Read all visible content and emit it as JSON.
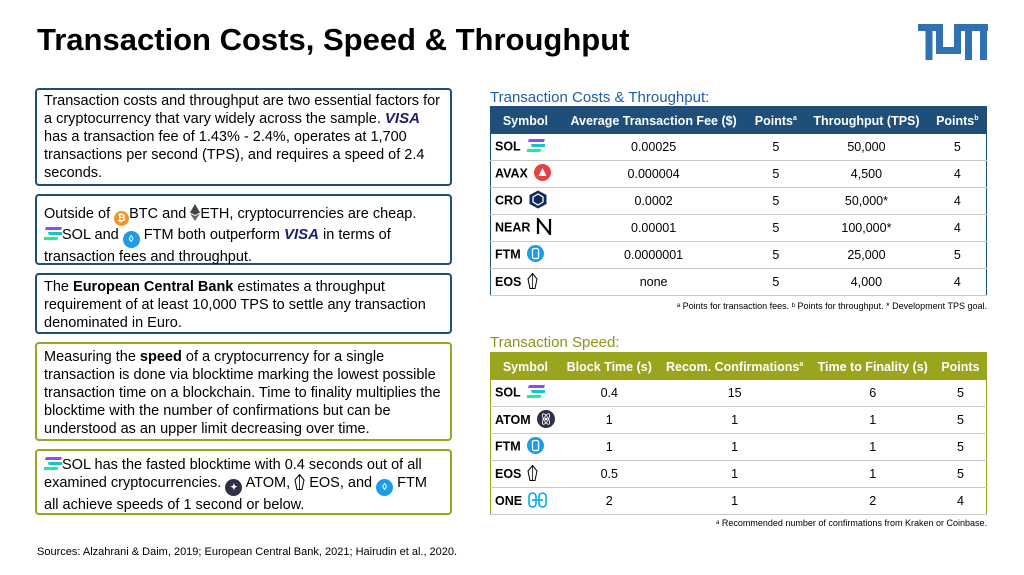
{
  "title": "Transaction Costs, Speed & Throughput",
  "colors": {
    "blue": "#1f4e79",
    "olive": "#9aa51e",
    "caption_blue": "#1f5ea8"
  },
  "boxes": {
    "intro": {
      "p1": "Transaction costs and throughput are two essential factors for a cryptocurrency that vary widely across the sample.",
      "visa": "VISA",
      "p2": "has a transaction fee of 1.43% - 2.4%, operates at 1,700 transactions per second (TPS), and requires a speed of 2.4 seconds."
    },
    "cheap": {
      "a": "Outside of",
      "btc": "BTC and",
      "eth": "ETH, cryptocurrencies are cheap.",
      "sol": "SOL and",
      "ftm": "FTM both outperform",
      "visa": "VISA",
      "end": "in terms of transaction fees and throughput."
    },
    "ecb": {
      "a": "The",
      "bold": "European Central Bank",
      "b": "estimates a throughput requirement of at least 10,000 TPS to settle any transaction denominated in Euro."
    },
    "speed": {
      "a": "Measuring the",
      "bold": "speed",
      "b": "of a cryptocurrency for a single transaction is done via blocktime marking the lowest possible transaction time on a blockchain. Time to finality multiplies the blocktime with the number of confirmations but can be understood as an upper limit decreasing over time."
    },
    "sol": {
      "a": "SOL has the fasted blocktime with 0.4 seconds out of all examined cryptocurrencies.",
      "atom": "ATOM,",
      "eos": "EOS, and",
      "ftm": "FTM",
      "b": "all achieve speeds of 1 second or below."
    }
  },
  "table1": {
    "caption": "Transaction Costs & Throughput:",
    "headers": [
      "Symbol",
      "Average Transaction Fee ($)",
      "Points",
      "Throughput (TPS)",
      "Points"
    ],
    "sup": "a",
    "sup2": "b",
    "rows": [
      {
        "symbol": "SOL",
        "icon": "solana-icon",
        "fee": "0.00025",
        "p1": "5",
        "tps": "50,000",
        "p2": "5"
      },
      {
        "symbol": "AVAX",
        "icon": "avalanche-icon",
        "fee": "0.000004",
        "p1": "5",
        "tps": "4,500",
        "p2": "4"
      },
      {
        "symbol": "CRO",
        "icon": "cronos-icon",
        "fee": "0.0002",
        "p1": "5",
        "tps": "50,000*",
        "p2": "4"
      },
      {
        "symbol": "NEAR",
        "icon": "near-icon",
        "fee": "0.00001",
        "p1": "5",
        "tps": "100,000*",
        "p2": "4"
      },
      {
        "symbol": "FTM",
        "icon": "fantom-icon",
        "fee": "0.0000001",
        "p1": "5",
        "tps": "25,000",
        "p2": "5"
      },
      {
        "symbol": "EOS",
        "icon": "eos-icon",
        "fee": "none",
        "p1": "5",
        "tps": "4,000",
        "p2": "4"
      }
    ],
    "note": "ᵃ Points for transaction fees. ᵇ Points for throughput. * Development TPS goal."
  },
  "table2": {
    "caption": "Transaction Speed:",
    "headers": [
      "Symbol",
      "Block Time (s)",
      "Recom. Confirmations",
      "Time to Finality (s)",
      "Points"
    ],
    "sup": "a",
    "rows": [
      {
        "symbol": "SOL",
        "icon": "solana-icon",
        "block": "0.4",
        "conf": "15",
        "fin": "6",
        "pts": "5"
      },
      {
        "symbol": "ATOM",
        "icon": "cosmos-icon",
        "block": "1",
        "conf": "1",
        "fin": "1",
        "pts": "5"
      },
      {
        "symbol": "FTM",
        "icon": "fantom-icon",
        "block": "1",
        "conf": "1",
        "fin": "1",
        "pts": "5"
      },
      {
        "symbol": "EOS",
        "icon": "eos-icon",
        "block": "0.5",
        "conf": "1",
        "fin": "1",
        "pts": "5"
      },
      {
        "symbol": "ONE",
        "icon": "harmony-icon",
        "block": "2",
        "conf": "1",
        "fin": "2",
        "pts": "4"
      }
    ],
    "note": "ᵃ Recommended number of confirmations from Kraken or Coinbase."
  },
  "sources": "Sources: Alzahrani & Daim, 2019; European Central Bank, 2021; Hairudin et al., 2020."
}
